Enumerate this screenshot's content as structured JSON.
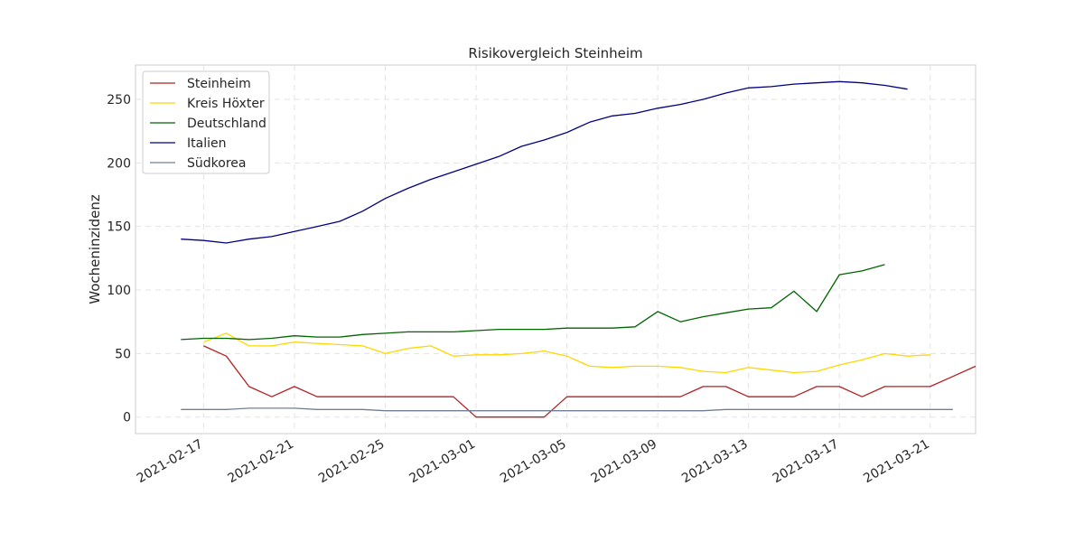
{
  "chart_data": {
    "type": "line",
    "title": "Risikovergleich Steinheim",
    "xlabel": "",
    "ylabel": "Wocheninzidenz",
    "x_start": "2021-02-16",
    "x_tick_labels": [
      "2021-02-17",
      "2021-02-21",
      "2021-02-25",
      "2021-03-01",
      "2021-03-05",
      "2021-03-09",
      "2021-03-13",
      "2021-03-17",
      "2021-03-21"
    ],
    "y_ticks": [
      0,
      50,
      100,
      150,
      200,
      250
    ],
    "xlim": [
      "2021-02-14",
      "2021-03-23"
    ],
    "ylim": [
      -13,
      277
    ],
    "grid": true,
    "legend_position": "top-left",
    "series": [
      {
        "name": "Steinheim",
        "color": "#b22222",
        "values": [
          null,
          56,
          48,
          24,
          16,
          24,
          16,
          16,
          16,
          16,
          16,
          16,
          16,
          0,
          0,
          0,
          0,
          16,
          16,
          16,
          16,
          16,
          16,
          24,
          24,
          16,
          16,
          16,
          24,
          24,
          16,
          24,
          24,
          24,
          32,
          40
        ]
      },
      {
        "name": "Kreis Höxter",
        "color": "#ffd700",
        "values": [
          null,
          59,
          66,
          56,
          56,
          59,
          58,
          57,
          56,
          50,
          54,
          56,
          48,
          49,
          49,
          50,
          52,
          48,
          40,
          39,
          40,
          40,
          39,
          36,
          35,
          39,
          37,
          35,
          36,
          41,
          45,
          50,
          48,
          49
        ]
      },
      {
        "name": "Deutschland",
        "color": "#006400",
        "values": [
          61,
          62,
          62,
          61,
          62,
          64,
          63,
          63,
          65,
          66,
          67,
          67,
          67,
          68,
          69,
          69,
          69,
          70,
          70,
          70,
          71,
          83,
          75,
          79,
          82,
          85,
          86,
          99,
          83,
          112,
          115,
          120
        ]
      },
      {
        "name": "Italien",
        "color": "#000080",
        "values": [
          140,
          139,
          137,
          140,
          142,
          146,
          150,
          154,
          162,
          172,
          180,
          187,
          193,
          199,
          205,
          213,
          218,
          224,
          232,
          237,
          239,
          243,
          246,
          250,
          255,
          259,
          260,
          262,
          263,
          264,
          263,
          261,
          258
        ]
      },
      {
        "name": "Südkorea",
        "color": "#708090",
        "values": [
          6,
          6,
          6,
          7,
          7,
          7,
          6,
          6,
          6,
          5,
          5,
          5,
          5,
          5,
          5,
          5,
          5,
          5,
          5,
          5,
          5,
          5,
          5,
          5,
          6,
          6,
          6,
          6,
          6,
          6,
          6,
          6,
          6,
          6,
          6
        ]
      }
    ]
  }
}
